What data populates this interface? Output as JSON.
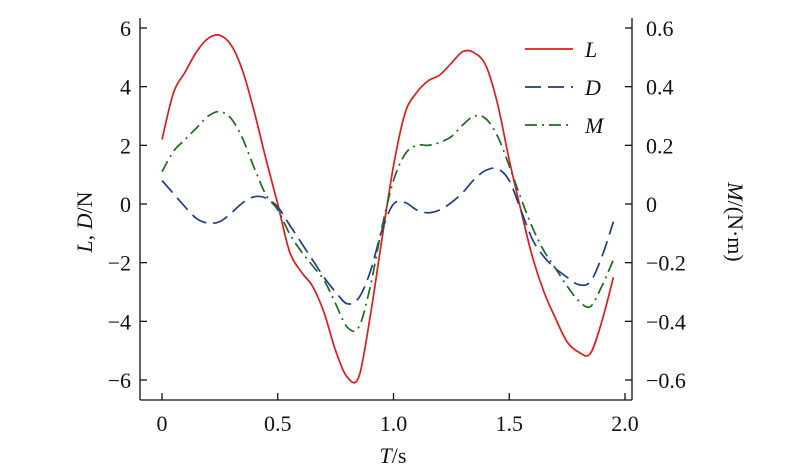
{
  "chart_data": {
    "type": "line",
    "xlabel_italic": "T",
    "xlabel_rest": "/s",
    "ylabel_left": {
      "part1": "L",
      "part2": ", ",
      "part3": "D",
      "part4": "/N"
    },
    "ylabel_right": {
      "part1": "M",
      "part2": "/(N·m)"
    },
    "xlim": [
      0,
      2.0
    ],
    "ylim_left": [
      -6.5,
      6
    ],
    "ylim_right": [
      -0.65,
      0.6
    ],
    "xticks": [
      0,
      0.5,
      1.0,
      1.5,
      2.0
    ],
    "xtick_labels": [
      "0",
      "0.5",
      "1.0",
      "1.5",
      "2.0"
    ],
    "yticks_left": [
      -6,
      -4,
      -2,
      0,
      2,
      4,
      6
    ],
    "ytick_labels_left": [
      "−6",
      "−4",
      "−2",
      "0",
      "2",
      "4",
      "6"
    ],
    "yticks_right": [
      -0.6,
      -0.4,
      -0.2,
      0,
      0.2,
      0.4,
      0.6
    ],
    "ytick_labels_right": [
      "−0.6",
      "−0.4",
      "−0.2",
      "0",
      "0.2",
      "0.4",
      "0.6"
    ],
    "legend_position": "top-right",
    "grid": false,
    "series": [
      {
        "name": "L",
        "axis": "left",
        "color": "#e01b1b",
        "dash": "solid",
        "x": [
          0,
          0.05,
          0.1,
          0.15,
          0.2,
          0.25,
          0.3,
          0.35,
          0.4,
          0.45,
          0.5,
          0.55,
          0.6,
          0.65,
          0.7,
          0.75,
          0.8,
          0.85,
          0.9,
          0.95,
          1.0,
          1.05,
          1.1,
          1.15,
          1.2,
          1.25,
          1.3,
          1.35,
          1.4,
          1.45,
          1.5,
          1.55,
          1.6,
          1.65,
          1.7,
          1.75,
          1.8,
          1.85,
          1.9,
          1.95
        ],
        "y": [
          2.2,
          3.8,
          4.5,
          5.2,
          5.65,
          5.75,
          5.4,
          4.5,
          3.1,
          1.5,
          0.0,
          -1.6,
          -2.3,
          -2.8,
          -3.7,
          -5.0,
          -5.9,
          -5.9,
          -3.8,
          -1.2,
          1.3,
          3.1,
          3.8,
          4.2,
          4.4,
          4.8,
          5.2,
          5.15,
          4.7,
          3.4,
          1.5,
          -0.2,
          -1.8,
          -3.0,
          -3.9,
          -4.7,
          -5.05,
          -5.1,
          -4.0,
          -2.5
        ]
      },
      {
        "name": "D",
        "axis": "left",
        "color": "#1f3d8f",
        "dash": "long-dash",
        "x": [
          0,
          0.05,
          0.1,
          0.15,
          0.2,
          0.25,
          0.3,
          0.35,
          0.4,
          0.45,
          0.5,
          0.55,
          0.6,
          0.65,
          0.7,
          0.75,
          0.8,
          0.85,
          0.9,
          0.95,
          1.0,
          1.05,
          1.1,
          1.15,
          1.2,
          1.25,
          1.3,
          1.35,
          1.4,
          1.45,
          1.5,
          1.55,
          1.6,
          1.65,
          1.7,
          1.75,
          1.8,
          1.85,
          1.9,
          1.95
        ],
        "y": [
          0.8,
          0.35,
          -0.1,
          -0.5,
          -0.65,
          -0.6,
          -0.3,
          0.05,
          0.25,
          0.2,
          -0.1,
          -0.7,
          -1.3,
          -1.9,
          -2.5,
          -3.0,
          -3.4,
          -3.2,
          -2.3,
          -0.9,
          0.0,
          0.05,
          -0.2,
          -0.3,
          -0.2,
          0.05,
          0.4,
          0.85,
          1.15,
          1.2,
          0.8,
          -0.2,
          -1.2,
          -1.8,
          -2.2,
          -2.5,
          -2.75,
          -2.65,
          -1.8,
          -0.6
        ]
      },
      {
        "name": "M",
        "axis": "right",
        "color": "#1e6b1e",
        "dash": "dash-dot",
        "x": [
          0,
          0.05,
          0.1,
          0.15,
          0.2,
          0.25,
          0.3,
          0.35,
          0.4,
          0.45,
          0.5,
          0.55,
          0.6,
          0.65,
          0.7,
          0.75,
          0.8,
          0.85,
          0.9,
          0.95,
          1.0,
          1.05,
          1.1,
          1.15,
          1.2,
          1.25,
          1.3,
          1.35,
          1.4,
          1.45,
          1.5,
          1.55,
          1.6,
          1.65,
          1.7,
          1.75,
          1.8,
          1.85,
          1.9,
          1.95
        ],
        "y": [
          0.11,
          0.18,
          0.22,
          0.26,
          0.3,
          0.315,
          0.29,
          0.22,
          0.12,
          0.03,
          -0.02,
          -0.1,
          -0.16,
          -0.21,
          -0.26,
          -0.34,
          -0.42,
          -0.42,
          -0.28,
          -0.08,
          0.08,
          0.17,
          0.2,
          0.2,
          0.21,
          0.23,
          0.27,
          0.3,
          0.29,
          0.23,
          0.13,
          0.02,
          -0.08,
          -0.16,
          -0.22,
          -0.28,
          -0.33,
          -0.35,
          -0.28,
          -0.19
        ]
      }
    ]
  }
}
